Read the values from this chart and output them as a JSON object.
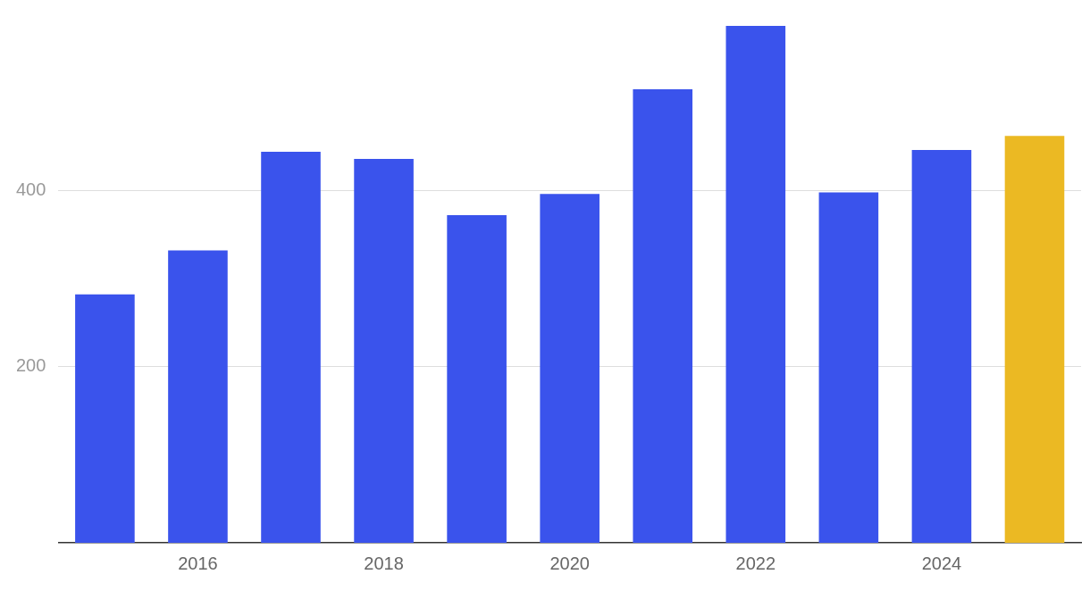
{
  "chart_data": {
    "type": "bar",
    "categories": [
      null,
      "2016",
      null,
      "2018",
      null,
      "2020",
      null,
      "2022",
      null,
      "2024",
      null
    ],
    "values": [
      282,
      332,
      444,
      436,
      372,
      396,
      515,
      587,
      398,
      446,
      462
    ],
    "colors": [
      "#3a53ec",
      "#3a53ec",
      "#3a53ec",
      "#3a53ec",
      "#3a53ec",
      "#3a53ec",
      "#3a53ec",
      "#3a53ec",
      "#3a53ec",
      "#3a53ec",
      "#ebb923"
    ],
    "ylim": [
      0,
      590
    ],
    "yticks": [
      200,
      400
    ],
    "grid": "y",
    "legend": false
  }
}
